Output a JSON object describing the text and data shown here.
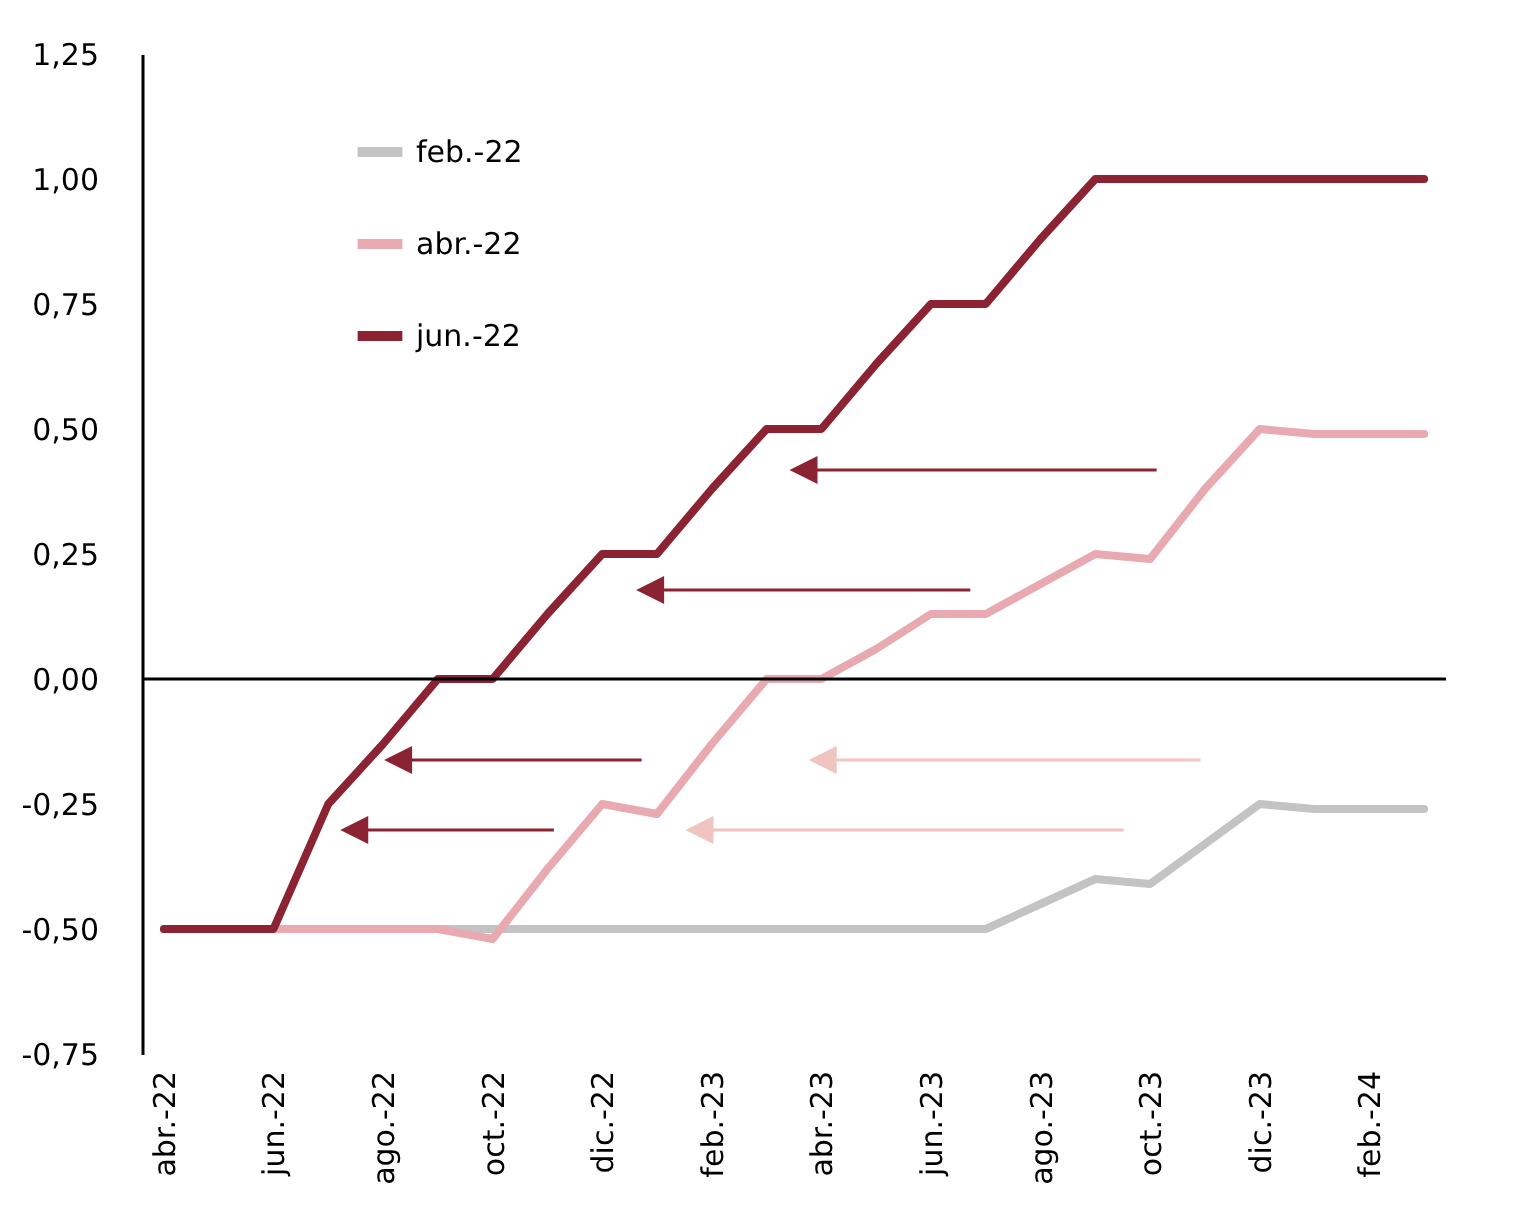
{
  "chart_data": {
    "type": "line",
    "categories": [
      "abr.-22",
      null,
      "jun.-22",
      null,
      "ago.-22",
      null,
      "oct.-22",
      null,
      "dic.-22",
      null,
      "feb.-23",
      null,
      "abr.-23",
      null,
      "jun.-23",
      null,
      "ago.-23",
      null,
      "oct.-23",
      null,
      "dic.-23",
      null,
      "feb.-24",
      null
    ],
    "series": [
      {
        "name": "feb.-22",
        "color": "#c3c3c3",
        "values": [
          null,
          null,
          -0.5,
          -0.5,
          -0.5,
          -0.5,
          -0.5,
          -0.5,
          -0.5,
          -0.5,
          -0.5,
          -0.5,
          -0.5,
          -0.5,
          -0.5,
          -0.5,
          -0.45,
          -0.4,
          -0.41,
          -0.33,
          -0.25,
          -0.26,
          -0.26,
          -0.26
        ]
      },
      {
        "name": "abr.-22",
        "color": "#e8aab0",
        "values": [
          null,
          null,
          -0.5,
          -0.5,
          -0.5,
          -0.5,
          -0.52,
          -0.38,
          -0.25,
          -0.27,
          -0.13,
          0.0,
          0.0,
          0.06,
          0.13,
          0.13,
          0.19,
          0.25,
          0.24,
          0.38,
          0.5,
          0.49,
          0.49,
          0.49
        ]
      },
      {
        "name": "jun.-22",
        "color": "#8b2332",
        "values": [
          -0.5,
          -0.5,
          -0.5,
          -0.25,
          -0.13,
          0.0,
          0.0,
          0.13,
          0.25,
          0.25,
          0.38,
          0.5,
          0.5,
          0.63,
          0.75,
          0.75,
          0.88,
          1.0,
          1.0,
          1.0,
          1.0,
          1.0,
          1.0,
          1.0
        ]
      }
    ],
    "ylim": [
      -0.75,
      1.25
    ],
    "yticks": [
      {
        "value": -0.75,
        "label": "-0,75"
      },
      {
        "value": -0.5,
        "label": "-0,50"
      },
      {
        "value": -0.25,
        "label": "-0,25"
      },
      {
        "value": 0,
        "label": "0,00"
      },
      {
        "value": 0.25,
        "label": "0,25"
      },
      {
        "value": 0.5,
        "label": "0,50"
      },
      {
        "value": 0.75,
        "label": "0,75"
      },
      {
        "value": 1.0,
        "label": "1,00"
      },
      {
        "value": 1.25,
        "label": "1,25"
      }
    ],
    "ref_lines": [
      {
        "axis": "y",
        "value": 0,
        "color": "#000000"
      }
    ],
    "legend": "top left",
    "grid": false,
    "marker": "none",
    "line_style": "solid"
  }
}
